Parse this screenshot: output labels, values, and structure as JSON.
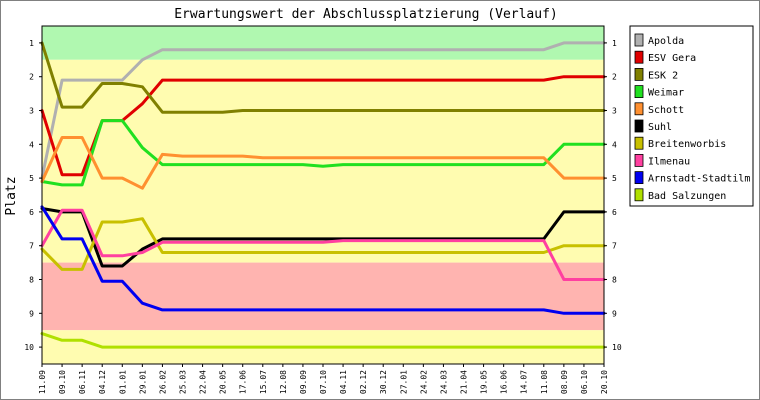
{
  "chart_data": {
    "type": "line",
    "title": "Erwartungswert der Abschlussplatzierung (Verlauf)",
    "ylabel": "Platz",
    "xlabel": "",
    "ylim": [
      10.5,
      0.5
    ],
    "y_ticks": [
      1,
      2,
      3,
      4,
      5,
      6,
      7,
      8,
      9,
      10
    ],
    "y_inverted": true,
    "grid": false,
    "legend_position": "right",
    "categories": [
      "11.09",
      "09.10",
      "06.11",
      "04.12",
      "01.01",
      "29.01",
      "26.02",
      "25.03",
      "22.04",
      "20.05",
      "17.06",
      "15.07",
      "12.08",
      "09.09",
      "07.10",
      "04.11",
      "02.12",
      "30.12",
      "27.01",
      "24.02",
      "24.03",
      "21.04",
      "19.05",
      "16.06",
      "14.07",
      "11.08",
      "08.09",
      "06.10",
      "20.10"
    ],
    "zones": [
      {
        "from": 0.5,
        "to": 1.5,
        "color": "#b0f8b0"
      },
      {
        "from": 1.5,
        "to": 7.5,
        "color": "#fffcb0"
      },
      {
        "from": 7.5,
        "to": 9.5,
        "color": "#ffb4b0"
      },
      {
        "from": 9.5,
        "to": 10.5,
        "color": "#fffcb0"
      }
    ],
    "series": [
      {
        "name": "Apolda",
        "color": "#b0b0b0",
        "values": [
          5.0,
          2.1,
          2.1,
          2.1,
          2.1,
          1.5,
          1.2,
          1.2,
          1.2,
          1.2,
          1.2,
          1.2,
          1.2,
          1.2,
          1.2,
          1.2,
          1.2,
          1.2,
          1.2,
          1.2,
          1.2,
          1.2,
          1.2,
          1.2,
          1.2,
          1.2,
          1.0,
          1.0,
          1.0
        ]
      },
      {
        "name": "ESV Gera",
        "color": "#e00000",
        "values": [
          3.0,
          4.9,
          4.9,
          3.3,
          3.3,
          2.8,
          2.1,
          2.1,
          2.1,
          2.1,
          2.1,
          2.1,
          2.1,
          2.1,
          2.1,
          2.1,
          2.1,
          2.1,
          2.1,
          2.1,
          2.1,
          2.1,
          2.1,
          2.1,
          2.1,
          2.1,
          2.0,
          2.0,
          2.0
        ]
      },
      {
        "name": "ESK 2",
        "color": "#808000",
        "values": [
          1.0,
          2.9,
          2.9,
          2.2,
          2.2,
          2.3,
          3.05,
          3.05,
          3.05,
          3.05,
          3.0,
          3.0,
          3.0,
          3.0,
          3.0,
          3.0,
          3.0,
          3.0,
          3.0,
          3.0,
          3.0,
          3.0,
          3.0,
          3.0,
          3.0,
          3.0,
          3.0,
          3.0,
          3.0
        ]
      },
      {
        "name": "Weimar",
        "color": "#20e020",
        "values": [
          5.1,
          5.2,
          5.2,
          3.3,
          3.3,
          4.1,
          4.6,
          4.6,
          4.6,
          4.6,
          4.6,
          4.6,
          4.6,
          4.6,
          4.65,
          4.6,
          4.6,
          4.6,
          4.6,
          4.6,
          4.6,
          4.6,
          4.6,
          4.6,
          4.6,
          4.6,
          4.0,
          4.0,
          4.0
        ]
      },
      {
        "name": "Schott",
        "color": "#ff9030",
        "values": [
          5.1,
          3.8,
          3.8,
          5.0,
          5.0,
          5.3,
          4.3,
          4.35,
          4.35,
          4.35,
          4.35,
          4.4,
          4.4,
          4.4,
          4.4,
          4.4,
          4.4,
          4.4,
          4.4,
          4.4,
          4.4,
          4.4,
          4.4,
          4.4,
          4.4,
          4.4,
          5.0,
          5.0,
          5.0
        ]
      },
      {
        "name": "Suhl",
        "color": "#000000",
        "values": [
          5.9,
          6.0,
          6.0,
          7.6,
          7.6,
          7.1,
          6.8,
          6.8,
          6.8,
          6.8,
          6.8,
          6.8,
          6.8,
          6.8,
          6.8,
          6.8,
          6.8,
          6.8,
          6.8,
          6.8,
          6.8,
          6.8,
          6.8,
          6.8,
          6.8,
          6.8,
          6.0,
          6.0,
          6.0
        ]
      },
      {
        "name": "Breitenworbis",
        "color": "#c8c000",
        "values": [
          7.1,
          7.7,
          7.7,
          6.3,
          6.3,
          6.2,
          7.2,
          7.2,
          7.2,
          7.2,
          7.2,
          7.2,
          7.2,
          7.2,
          7.2,
          7.2,
          7.2,
          7.2,
          7.2,
          7.2,
          7.2,
          7.2,
          7.2,
          7.2,
          7.2,
          7.2,
          7.0,
          7.0,
          7.0
        ]
      },
      {
        "name": "Ilmenau",
        "color": "#ff40a0",
        "values": [
          7.0,
          5.95,
          5.95,
          7.3,
          7.3,
          7.2,
          6.9,
          6.9,
          6.9,
          6.9,
          6.9,
          6.9,
          6.9,
          6.9,
          6.9,
          6.85,
          6.85,
          6.85,
          6.85,
          6.85,
          6.85,
          6.85,
          6.85,
          6.85,
          6.85,
          6.85,
          8.0,
          8.0,
          8.0
        ]
      },
      {
        "name": "Arnstadt-Stadtilm",
        "color": "#0000f0",
        "values": [
          5.85,
          6.8,
          6.8,
          8.05,
          8.05,
          8.7,
          8.9,
          8.9,
          8.9,
          8.9,
          8.9,
          8.9,
          8.9,
          8.9,
          8.9,
          8.9,
          8.9,
          8.9,
          8.9,
          8.9,
          8.9,
          8.9,
          8.9,
          8.9,
          8.9,
          8.9,
          9.0,
          9.0,
          9.0
        ]
      },
      {
        "name": "Bad Salzungen",
        "color": "#b0e000",
        "values": [
          9.6,
          9.8,
          9.8,
          10.0,
          10.0,
          10.0,
          10.0,
          10.0,
          10.0,
          10.0,
          10.0,
          10.0,
          10.0,
          10.0,
          10.0,
          10.0,
          10.0,
          10.0,
          10.0,
          10.0,
          10.0,
          10.0,
          10.0,
          10.0,
          10.0,
          10.0,
          10.0,
          10.0,
          10.0
        ]
      }
    ]
  }
}
